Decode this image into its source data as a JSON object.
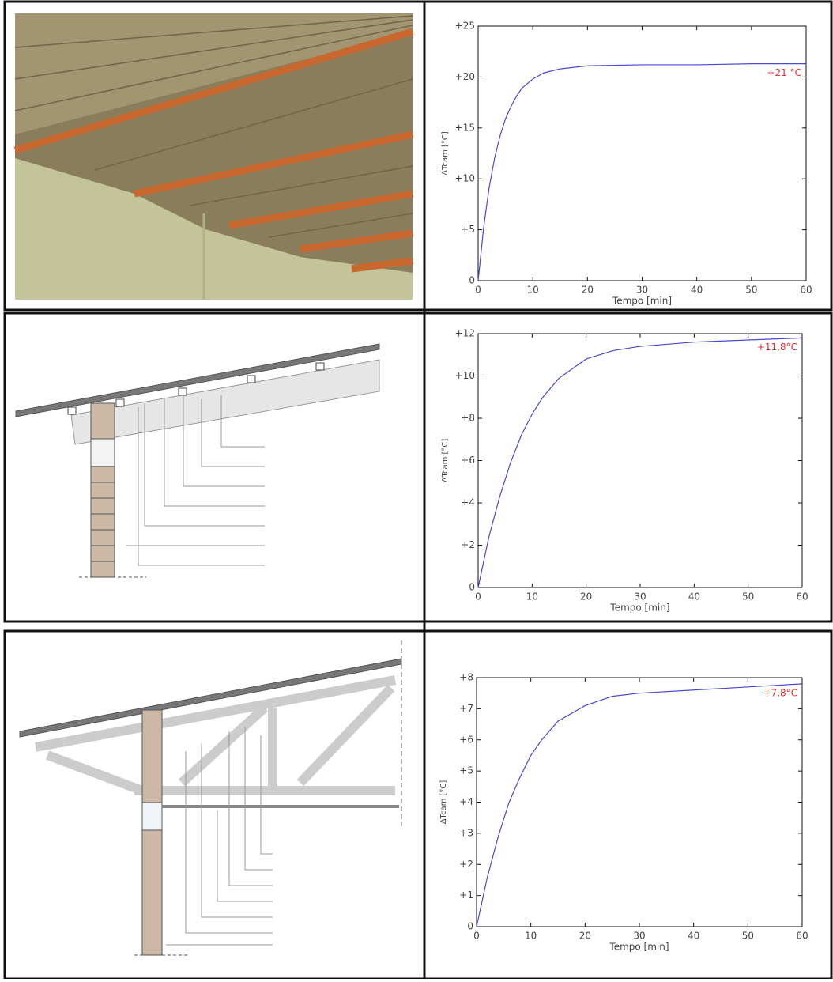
{
  "chart_data": [
    {
      "type": "line",
      "x_label": "Tempo [min]",
      "y_label": "ΔTcam [°C]",
      "annotation": "+21 °C",
      "color": "#4a4ad0",
      "x": [
        0,
        1,
        2,
        3,
        4,
        5,
        6,
        7,
        8,
        10,
        12,
        15,
        20,
        30,
        40,
        50,
        60
      ],
      "values": [
        0,
        5.2,
        9.1,
        12.0,
        14.2,
        15.9,
        17.1,
        18.1,
        18.9,
        19.8,
        20.4,
        20.8,
        21.1,
        21.2,
        21.2,
        21.3,
        21.3
      ],
      "xlim": [
        0,
        60
      ],
      "xticks": [
        0,
        10,
        20,
        30,
        40,
        50,
        60
      ],
      "ylim": [
        0,
        25
      ],
      "yticks": [
        0,
        {
          "value": 5,
          "label": "+5"
        },
        {
          "value": 10,
          "label": "+10"
        },
        {
          "value": 15,
          "label": "+15"
        },
        {
          "value": 20,
          "label": "+20"
        },
        {
          "value": 25,
          "label": "+25"
        }
      ]
    },
    {
      "type": "line",
      "x_label": "Tempo [min]",
      "y_label": "ΔTcam [°C]",
      "annotation": "+11,8°C",
      "color": "#4a4ad0",
      "x": [
        0,
        2,
        4,
        6,
        8,
        10,
        12,
        15,
        20,
        25,
        30,
        40,
        50,
        60
      ],
      "values": [
        0,
        2.4,
        4.3,
        5.9,
        7.2,
        8.2,
        9.0,
        9.9,
        10.8,
        11.2,
        11.4,
        11.6,
        11.7,
        11.8
      ],
      "xlim": [
        0,
        60
      ],
      "xticks": [
        0,
        10,
        20,
        30,
        40,
        50,
        60
      ],
      "ylim": [
        0,
        12
      ],
      "yticks": [
        0,
        {
          "value": 2,
          "label": "+2"
        },
        {
          "value": 4,
          "label": "+4"
        },
        {
          "value": 6,
          "label": "+6"
        },
        {
          "value": 8,
          "label": "+8"
        },
        {
          "value": 10,
          "label": "+10"
        },
        {
          "value": 12,
          "label": "+12"
        }
      ]
    },
    {
      "type": "line",
      "x_label": "Tempo [min]",
      "y_label": "ΔTcam [°C]",
      "annotation": "+7,8°C",
      "color": "#4a4ad0",
      "x": [
        0,
        2,
        4,
        6,
        8,
        10,
        12,
        15,
        20,
        25,
        30,
        40,
        50,
        60
      ],
      "values": [
        0,
        1.6,
        2.9,
        4.0,
        4.8,
        5.5,
        6.0,
        6.6,
        7.1,
        7.4,
        7.5,
        7.6,
        7.7,
        7.8
      ],
      "xlim": [
        0,
        60
      ],
      "xticks": [
        0,
        10,
        20,
        30,
        40,
        50,
        60
      ],
      "ylim": [
        0,
        8
      ],
      "yticks": [
        0,
        {
          "value": 1,
          "label": "+1"
        },
        {
          "value": 2,
          "label": "+2"
        },
        {
          "value": 3,
          "label": "+3"
        },
        {
          "value": 4,
          "label": "+4"
        },
        {
          "value": 5,
          "label": "+5"
        },
        {
          "value": 6,
          "label": "+6"
        },
        {
          "value": 7,
          "label": "+7"
        },
        {
          "value": 8,
          "label": "+8"
        }
      ]
    }
  ]
}
